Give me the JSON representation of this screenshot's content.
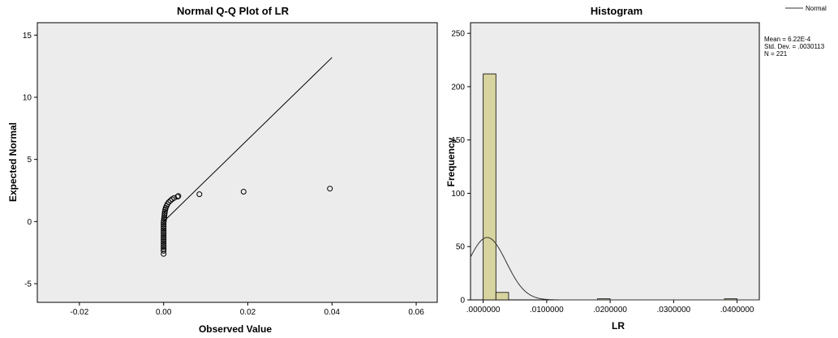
{
  "chart_data": [
    {
      "type": "scatter",
      "title": "Normal Q-Q Plot of LR",
      "xlabel": "Observed Value",
      "ylabel": "Expected Normal",
      "xlim": [
        -0.03,
        0.065
      ],
      "ylim": [
        -6.5,
        16
      ],
      "xticks": [
        "-0.02",
        "0.00",
        "0.02",
        "0.04",
        "0.06"
      ],
      "xtick_values": [
        -0.02,
        0.0,
        0.02,
        0.04,
        0.06
      ],
      "yticks": [
        "-5",
        "0",
        "5",
        "10",
        "15"
      ],
      "ytick_values": [
        -5,
        0,
        5,
        10,
        15
      ],
      "reference_line": {
        "x": [
          0.0,
          0.04
        ],
        "y": [
          0.0,
          13.2
        ]
      },
      "points": [
        {
          "x": 0.0,
          "y": -2.6
        },
        {
          "x": 0.0,
          "y": -2.35
        },
        {
          "x": 0.0,
          "y": -2.2
        },
        {
          "x": 0.0,
          "y": -2.05
        },
        {
          "x": 0.0,
          "y": -1.9
        },
        {
          "x": 0.0,
          "y": -1.75
        },
        {
          "x": 0.0,
          "y": -1.6
        },
        {
          "x": 0.0,
          "y": -1.45
        },
        {
          "x": 0.0,
          "y": -1.3
        },
        {
          "x": 0.0,
          "y": -1.15
        },
        {
          "x": 0.0,
          "y": -1.0
        },
        {
          "x": 0.0,
          "y": -0.85
        },
        {
          "x": 0.0,
          "y": -0.7
        },
        {
          "x": 0.0,
          "y": -0.55
        },
        {
          "x": 0.0,
          "y": -0.4
        },
        {
          "x": 0.0,
          "y": -0.25
        },
        {
          "x": 0.0,
          "y": -0.1
        },
        {
          "x": 5e-05,
          "y": 0.05
        },
        {
          "x": 0.0001,
          "y": 0.2
        },
        {
          "x": 0.00015,
          "y": 0.35
        },
        {
          "x": 0.0002,
          "y": 0.5
        },
        {
          "x": 0.00025,
          "y": 0.65
        },
        {
          "x": 0.0003,
          "y": 0.8
        },
        {
          "x": 0.0004,
          "y": 0.95
        },
        {
          "x": 0.0005,
          "y": 1.1
        },
        {
          "x": 0.0007,
          "y": 1.25
        },
        {
          "x": 0.0009,
          "y": 1.4
        },
        {
          "x": 0.0012,
          "y": 1.55
        },
        {
          "x": 0.0016,
          "y": 1.68
        },
        {
          "x": 0.002,
          "y": 1.8
        },
        {
          "x": 0.0025,
          "y": 1.9
        },
        {
          "x": 0.0033,
          "y": 2.0
        },
        {
          "x": 0.0035,
          "y": 2.05
        },
        {
          "x": 0.0085,
          "y": 2.2
        },
        {
          "x": 0.019,
          "y": 2.4
        },
        {
          "x": 0.0395,
          "y": 2.65
        }
      ]
    },
    {
      "type": "bar",
      "title": "Histogram",
      "xlabel": "LR",
      "ylabel": "Frequency",
      "xlim": [
        -0.002,
        0.0435
      ],
      "ylim": [
        0,
        260
      ],
      "xticks": [
        ".0000000",
        ".0100000",
        ".0200000",
        ".0300000",
        ".0400000"
      ],
      "xtick_values": [
        0.0,
        0.01,
        0.02,
        0.03,
        0.04
      ],
      "yticks": [
        "0",
        "50",
        "100",
        "150",
        "200",
        "250"
      ],
      "ytick_values": [
        0,
        50,
        100,
        150,
        200,
        250
      ],
      "bin_width": 0.002,
      "bins": [
        {
          "start": 0.0,
          "count": 212
        },
        {
          "start": 0.002,
          "count": 7
        },
        {
          "start": 0.018,
          "count": 1
        },
        {
          "start": 0.038,
          "count": 1
        }
      ],
      "normal_curve": {
        "mean": 0.000622,
        "sd": 0.0030113,
        "n": 221
      },
      "stats": [
        "Mean = 6.22E-4",
        "Std. Dev. = .0030113",
        "N = 221"
      ],
      "legend": {
        "label": "Normal",
        "position": "top-right"
      }
    }
  ],
  "colors": {
    "plot_bg": "#ececec",
    "bar_fill": "#d8d4a0",
    "line": "#000000"
  }
}
